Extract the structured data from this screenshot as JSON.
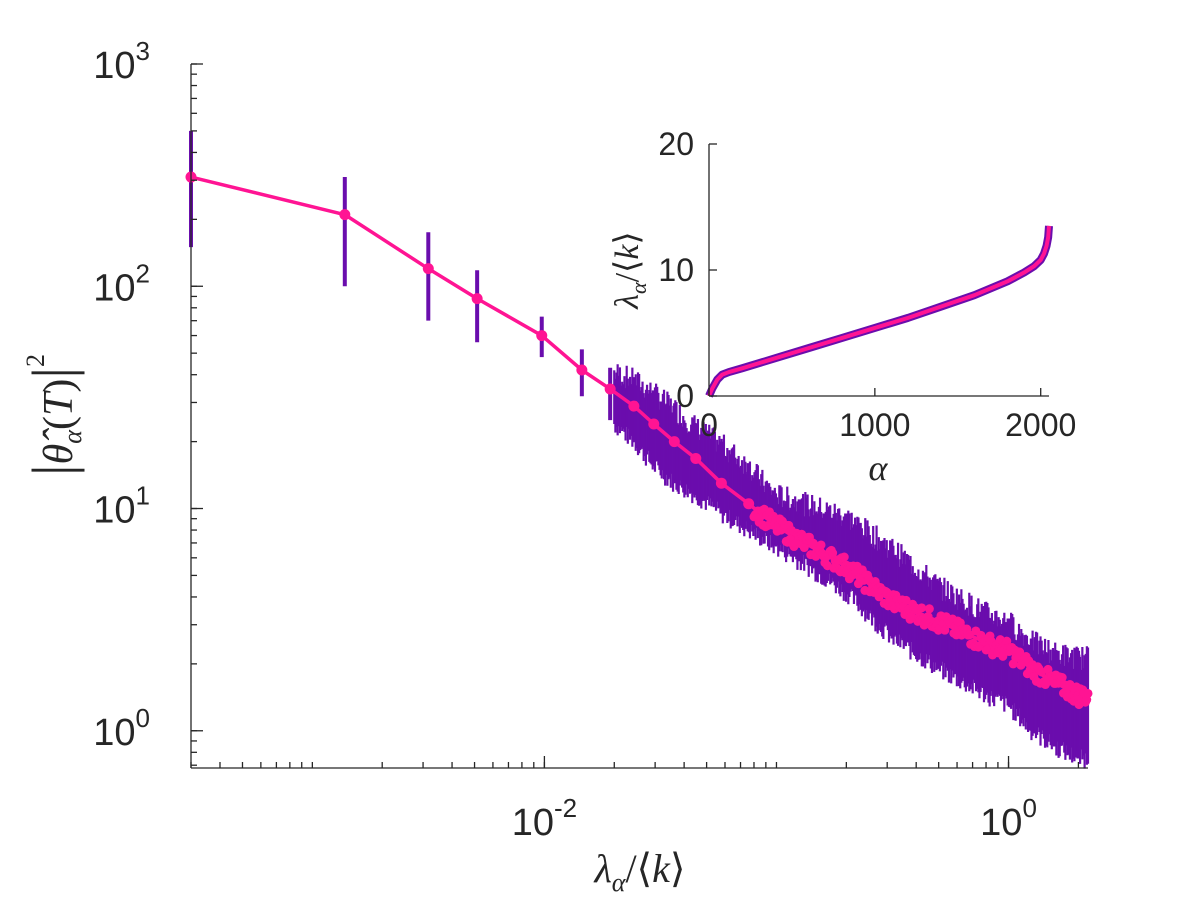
{
  "chart_data": [
    {
      "type": "line",
      "xscale": "log",
      "yscale": "log",
      "xlabel": "λα/⟨k⟩",
      "ylabel": "|θ̂α(T)|²",
      "xlim": [
        0.0003,
        2.2
      ],
      "ylim": [
        0.68,
        1000
      ],
      "x_ticks": [
        {
          "value": 0.01,
          "base": "10",
          "exp": "-2"
        },
        {
          "value": 1,
          "base": "10",
          "exp": "0"
        }
      ],
      "y_ticks": [
        {
          "value": 1,
          "base": "10",
          "exp": "0"
        },
        {
          "value": 10,
          "base": "10",
          "exp": "1"
        },
        {
          "value": 100,
          "base": "10",
          "exp": "2"
        },
        {
          "value": 1000,
          "base": "10",
          "exp": "3"
        }
      ],
      "grid": false,
      "series": [
        {
          "color": "#ff1493",
          "style": "line-with-markers",
          "x": [
            0.0003,
            0.00138,
            0.00316,
            0.00513,
            0.00974,
            0.0145,
            0.0192,
            0.0243,
            0.0296,
            0.0363,
            0.0449,
            0.0579,
            0.0759,
            0.0974,
            0.1259,
            0.1995,
            0.3162,
            0.5012,
            0.7943,
            1.0,
            1.2589,
            1.5849,
            2.0
          ],
          "y": [
            310,
            210,
            120,
            88,
            60,
            42,
            34.5,
            28.9,
            24,
            20,
            16.8,
            13,
            10.5,
            8.5,
            7.2,
            5.5,
            3.8,
            3.1,
            2.5,
            2.3,
            1.9,
            1.65,
            1.45
          ]
        },
        {
          "color": "#6a0dad",
          "style": "error-bars",
          "x": [
            0.0003,
            0.00138,
            0.00316,
            0.00513,
            0.00974,
            0.0145,
            0.0192,
            0.0243,
            0.0296,
            0.0363,
            0.0449,
            0.0579,
            0.0759,
            0.0974,
            0.1259,
            0.1995,
            0.3162,
            0.5012,
            0.7943,
            1.0,
            1.2589,
            1.5849,
            2.0
          ],
          "low": [
            150,
            100,
            70,
            56,
            48,
            32,
            25,
            20,
            15.5,
            13,
            11.5,
            9.5,
            8,
            6.8,
            5.8,
            4.2,
            2.6,
            1.9,
            1.45,
            1.3,
            1.0,
            0.85,
            0.75
          ],
          "high": [
            500,
            310,
            175,
            118,
            73,
            52,
            43,
            39,
            34,
            29,
            24,
            20,
            16,
            12,
            11,
            9.5,
            6.8,
            4.6,
            3.5,
            3.2,
            2.6,
            2.3,
            2.2
          ]
        }
      ]
    },
    {
      "type": "line",
      "xlabel": "α",
      "ylabel": "λα/⟨k⟩",
      "xlim": [
        0,
        2050
      ],
      "ylim": [
        0,
        20
      ],
      "x_ticks": [
        0,
        1000,
        2000
      ],
      "y_ticks": [
        0,
        10,
        20
      ],
      "grid": false,
      "series": [
        {
          "color": "#ff1493",
          "band_color": "#6a0dad",
          "x": [
            0,
            20,
            50,
            80,
            120,
            200,
            400,
            600,
            800,
            1000,
            1200,
            1400,
            1600,
            1800,
            1900,
            1960,
            2000,
            2020,
            2035,
            2045,
            2050
          ],
          "y": [
            0,
            0.6,
            1.3,
            1.7,
            1.9,
            2.2,
            3.0,
            3.8,
            4.6,
            5.4,
            6.2,
            7.1,
            8.0,
            9.1,
            9.8,
            10.3,
            10.8,
            11.3,
            11.9,
            12.6,
            13.5
          ]
        }
      ]
    }
  ]
}
